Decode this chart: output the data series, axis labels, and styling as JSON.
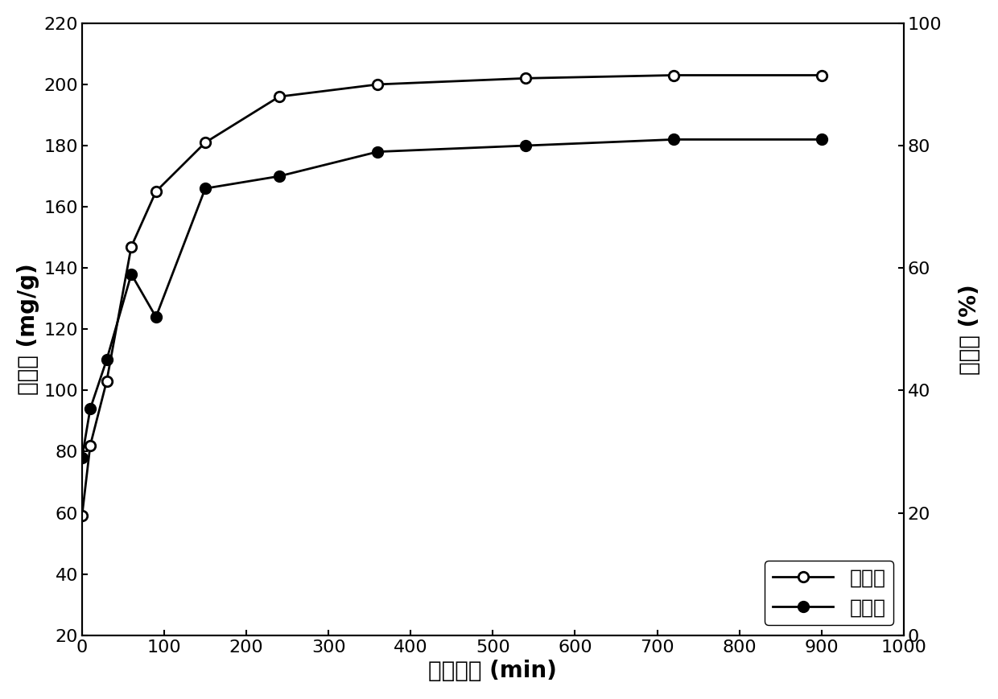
{
  "x_ads": [
    0,
    10,
    30,
    60,
    90,
    150,
    240,
    360,
    540,
    720,
    900
  ],
  "y_ads": [
    59,
    82,
    103,
    147,
    165,
    181,
    196,
    200,
    202,
    203,
    203
  ],
  "x_rem": [
    0,
    10,
    30,
    60,
    90,
    150,
    240,
    360,
    540,
    720,
    900
  ],
  "y_rem": [
    29,
    37,
    45,
    59,
    52,
    73,
    75,
    79,
    80,
    81,
    81
  ],
  "xlabel": "吸附时间 (min)",
  "ylabel_left": "吸附量（mg/g）",
  "ylabel_right_chars": [
    "去",
    "除",
    "率",
    "(%)",
    ""
  ],
  "legend_adsorption": "吸附量",
  "legend_removal": "去除率",
  "xlim": [
    0,
    1000
  ],
  "ylim_left": [
    20,
    220
  ],
  "ylim_right": [
    0,
    100
  ],
  "xticks": [
    0,
    100,
    200,
    300,
    400,
    500,
    600,
    700,
    800,
    900,
    1000
  ],
  "yticks_left": [
    20,
    40,
    60,
    80,
    100,
    120,
    140,
    160,
    180,
    200,
    220
  ],
  "yticks_right": [
    0,
    20,
    40,
    60,
    80,
    100
  ],
  "line_color": "#000000",
  "bg_color": "#ffffff",
  "marker_size": 9,
  "line_width": 2.0,
  "xlabel_fontsize": 20,
  "ylabel_fontsize": 20,
  "tick_fontsize": 16,
  "legend_fontsize": 18
}
